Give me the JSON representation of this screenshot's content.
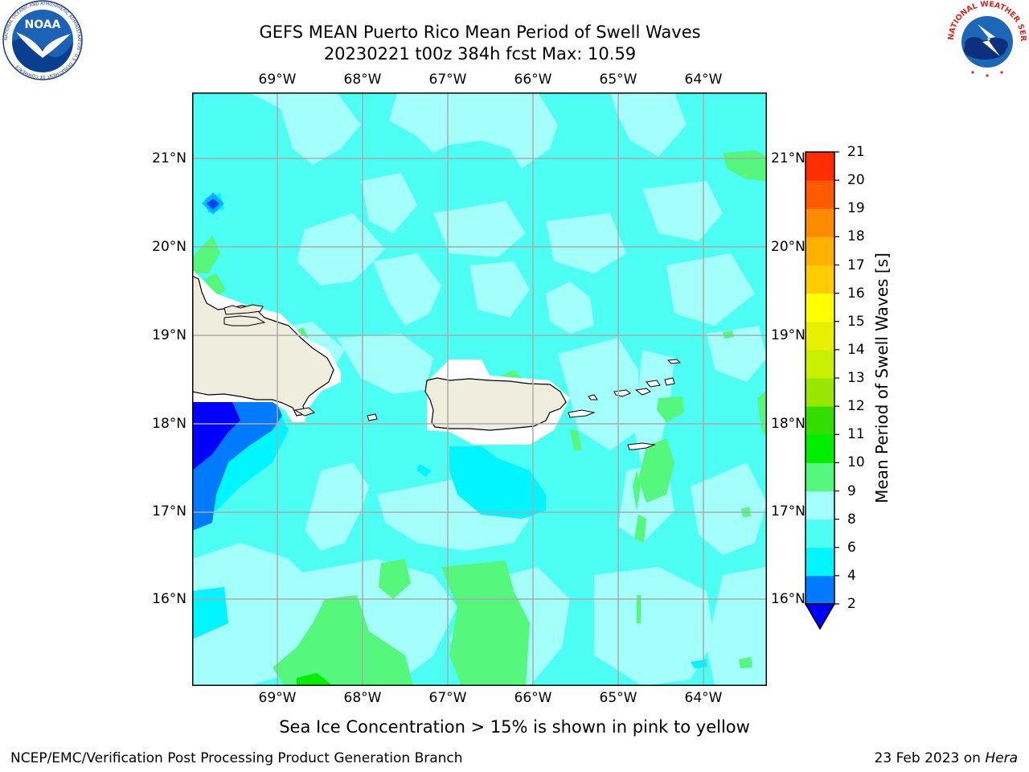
{
  "header": {
    "title_line1": "GEFS MEAN Puerto Rico Mean Period of Swell Waves",
    "title_line2": "20230221 t00z 384h fcst   Max: 10.59"
  },
  "logos": {
    "left": {
      "icon": "noaa-logo-icon",
      "text": "NOAA",
      "ring_text": "NATIONAL OCEANIC AND ATMOSPHERIC ADMINISTRATION · U.S. DEPARTMENT OF COMMERCE"
    },
    "right": {
      "icon": "nws-logo-icon",
      "ring_text": "NATIONAL WEATHER SERVICE"
    }
  },
  "map": {
    "lon_range": [
      -70,
      -63.25
    ],
    "lat_range": [
      15,
      21.75
    ],
    "lon_ticks": [
      {
        "value": -69,
        "label": "69°W"
      },
      {
        "value": -68,
        "label": "68°W"
      },
      {
        "value": -67,
        "label": "67°W"
      },
      {
        "value": -66,
        "label": "66°W"
      },
      {
        "value": -65,
        "label": "65°W"
      },
      {
        "value": -64,
        "label": "64°W"
      }
    ],
    "lat_ticks": [
      {
        "value": 21,
        "label": "21°N"
      },
      {
        "value": 20,
        "label": "20°N"
      },
      {
        "value": 19,
        "label": "19°N"
      },
      {
        "value": 18,
        "label": "18°N"
      },
      {
        "value": 17,
        "label": "17°N"
      },
      {
        "value": 16,
        "label": "16°N"
      }
    ],
    "grid": true,
    "colors": {
      "land": "#efedde",
      "ocean_6_8": "#4dfff3",
      "ocean_8_9": "#a3fff9",
      "ocean_9_10": "#55f77d",
      "ocean_4_6": "#00f5ff",
      "ocean_2_4": "#007bff",
      "ocean_lt2": "#0000ff",
      "grid": "#aaaaaa"
    }
  },
  "colorbar": {
    "label": "Mean Period of Swell Waves [s]",
    "levels": [
      2,
      4,
      6,
      8,
      9,
      10,
      11,
      12,
      13,
      14,
      15,
      16,
      17,
      18,
      19,
      20,
      21
    ],
    "colors": [
      "#007bff",
      "#00f5ff",
      "#4dfff3",
      "#a3fff9",
      "#55f77d",
      "#00ee00",
      "#33dd00",
      "#99e600",
      "#c8f000",
      "#e6f000",
      "#ffff00",
      "#ffcc00",
      "#ffb000",
      "#ff8c00",
      "#ff5a00",
      "#ff2d00"
    ],
    "under_color": "#0000ff",
    "tick_labels": [
      "2",
      "4",
      "6",
      "8",
      "9",
      "10",
      "11",
      "12",
      "13",
      "14",
      "15",
      "16",
      "17",
      "18",
      "19",
      "20",
      "21"
    ]
  },
  "note": "Sea Ice Concentration > 15% is shown in pink to yellow",
  "footer": {
    "left": "NCEP/EMC/Verification Post Processing Product Generation Branch",
    "right_prefix": "23 Feb 2023 on ",
    "right_host": "Hera"
  }
}
